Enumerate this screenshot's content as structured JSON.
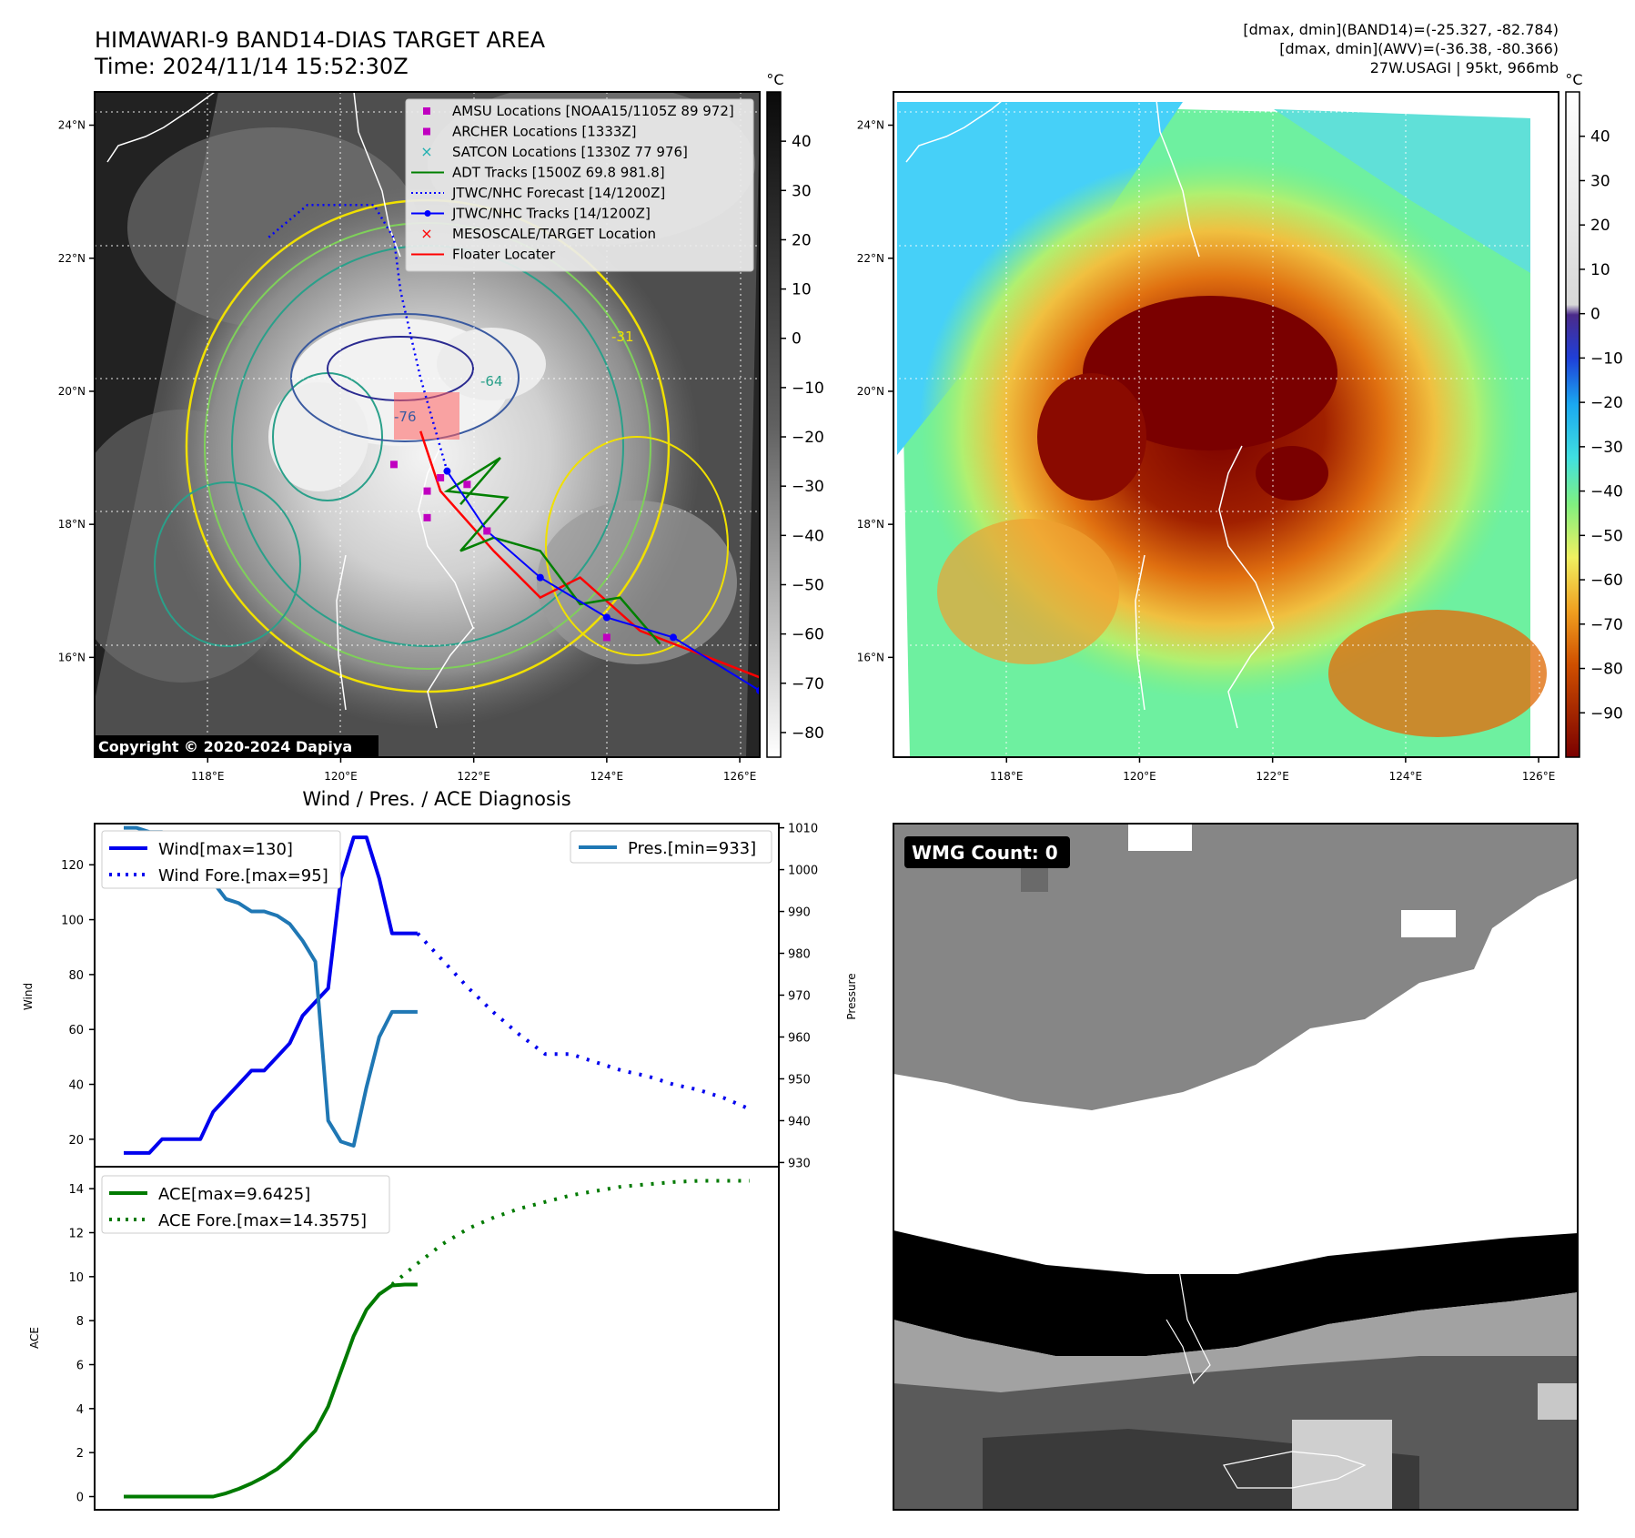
{
  "header": {
    "title_line1": "HIMAWARI-9 BAND14-DIAS TARGET AREA",
    "title_line2": "Time: 2024/11/14 15:52:30Z",
    "info_line1": "[dmax, dmin](BAND14)=(-25.327, -82.784)",
    "info_line2": "[dmax, dmin](AWV)=(-36.38, -80.366)",
    "info_line3": "27W.USAGI | 95kt, 966mb"
  },
  "map_axes": {
    "lon_labels": [
      "118°E",
      "120°E",
      "122°E",
      "124°E",
      "126°E"
    ],
    "lat_labels": [
      "24°N",
      "22°N",
      "20°N",
      "18°N",
      "16°N"
    ],
    "lon_range": [
      116.3,
      126.3
    ],
    "lat_range": [
      14.5,
      24.5
    ]
  },
  "ir_panel": {
    "copyright": "Copyright © 2020-2024 Dapiya",
    "colorbar_unit": "°C",
    "colorbar_ticks": [
      "40",
      "30",
      "20",
      "10",
      "0",
      "−10",
      "−20",
      "−30",
      "−40",
      "−50",
      "−60",
      "−70",
      "−80"
    ],
    "colorbar_range": [
      -85,
      50
    ],
    "legend": [
      {
        "label": "AMSU Locations [NOAA15/1105Z 89 972]",
        "color": "#c000c0"
      },
      {
        "label": "ARCHER Locations [1333Z]",
        "color": "#c000c0"
      },
      {
        "label": "SATCON Locations [1330Z 77 976]",
        "color": "#20b0b0"
      },
      {
        "label": "ADT Tracks [1500Z 69.8 981.8]",
        "color": "#008000"
      },
      {
        "label": "JTWC/NHC Forecast [14/1200Z]",
        "color": "#0000ff"
      },
      {
        "label": "JTWC/NHC Tracks [14/1200Z]",
        "color": "#0000ff"
      },
      {
        "label": "MESOSCALE/TARGET Location",
        "color": "#ff0000"
      },
      {
        "label": "Floater Locater",
        "color": "#ff0000"
      }
    ],
    "contour_labels": [
      "-76",
      "-64",
      "-31"
    ],
    "tracks": {
      "jtwc_track": [
        [
          126.3,
          15.5
        ],
        [
          125.0,
          16.3
        ],
        [
          124.0,
          16.6
        ],
        [
          123.0,
          17.2
        ],
        [
          122.2,
          17.9
        ],
        [
          121.6,
          18.8
        ]
      ],
      "jtwc_forecast": [
        [
          121.6,
          18.8
        ],
        [
          121.2,
          20.2
        ],
        [
          120.9,
          21.5
        ],
        [
          120.8,
          22.3
        ],
        [
          120.5,
          22.8
        ],
        [
          119.5,
          22.8
        ],
        [
          118.9,
          22.3
        ]
      ],
      "adt_track": [
        [
          124.8,
          16.2
        ],
        [
          124.2,
          16.9
        ],
        [
          123.6,
          16.8
        ],
        [
          123.0,
          17.6
        ],
        [
          122.3,
          17.8
        ],
        [
          121.8,
          17.6
        ],
        [
          122.5,
          18.4
        ],
        [
          121.6,
          18.5
        ],
        [
          122.4,
          19.0
        ],
        [
          121.8,
          18.3
        ]
      ],
      "floater": [
        [
          126.3,
          15.7
        ],
        [
          124.5,
          16.4
        ],
        [
          123.6,
          17.2
        ],
        [
          123.0,
          16.9
        ],
        [
          122.3,
          17.6
        ],
        [
          121.5,
          18.5
        ],
        [
          121.2,
          19.4
        ]
      ]
    },
    "amsu_points": [
      [
        120.8,
        18.9
      ],
      [
        121.5,
        18.7
      ],
      [
        121.3,
        18.5
      ],
      [
        121.3,
        18.1
      ],
      [
        121.9,
        18.6
      ],
      [
        122.2,
        17.9
      ],
      [
        124.0,
        16.3
      ]
    ]
  },
  "wv_panel": {
    "colorbar_unit": "°C",
    "colorbar_ticks": [
      "40",
      "30",
      "20",
      "10",
      "0",
      "−10",
      "−20",
      "−30",
      "−40",
      "−50",
      "−60",
      "−70",
      "−80",
      "−90"
    ],
    "colorbar_range": [
      -100,
      50
    ]
  },
  "wind_panel": {
    "title": "Wind / Pres. / ACE Diagnosis",
    "ylabel_left": "Wind",
    "ylabel_right": "Pressure",
    "legend_wind": "Wind[max=130]",
    "legend_wind_fore": "Wind Fore.[max=95]",
    "legend_pres": "Pres.[min=933]",
    "wind_ticks": [
      "20",
      "40",
      "60",
      "80",
      "100",
      "120"
    ],
    "pres_ticks": [
      "930",
      "940",
      "950",
      "960",
      "970",
      "980",
      "990",
      "1000",
      "1010"
    ],
    "wind_ylim": [
      10,
      135
    ],
    "pres_ylim": [
      929,
      1011
    ],
    "colors": {
      "wind": "#0000ee",
      "pres": "#1f77b4"
    }
  },
  "ace_panel": {
    "ylabel": "ACE",
    "legend_ace": "ACE[max=9.6425]",
    "legend_ace_fore": "ACE Fore.[max=14.3575]",
    "ace_ticks": [
      "0",
      "2",
      "4",
      "6",
      "8",
      "10",
      "12",
      "14"
    ],
    "ace_ylim": [
      -0.6,
      15
    ],
    "colors": {
      "ace": "#007a00"
    }
  },
  "wmg_panel": {
    "badge": "WMG Count: 0"
  },
  "chart_data": [
    {
      "type": "line",
      "x_index_range": [
        0,
        49
      ],
      "series": [
        {
          "name": "Wind[max=130]",
          "axis": "wind",
          "x": [
            0,
            2,
            3,
            5,
            6,
            7,
            8,
            9,
            10,
            11,
            12,
            13,
            14,
            15,
            16,
            17,
            18,
            19,
            20,
            21,
            22,
            23
          ],
          "values": [
            15,
            15,
            20,
            20,
            20,
            30,
            35,
            40,
            45,
            45,
            50,
            55,
            65,
            70,
            75,
            115,
            130,
            130,
            115,
            95,
            95,
            95
          ]
        },
        {
          "name": "Wind Fore.[max=95]",
          "axis": "wind",
          "x": [
            23,
            25,
            27,
            29,
            31,
            33,
            35,
            37,
            39,
            41,
            43,
            45,
            47,
            49
          ],
          "values": [
            95,
            85,
            75,
            66,
            58,
            51,
            51,
            48,
            45,
            43,
            40,
            38,
            35,
            31
          ]
        },
        {
          "name": "Pres.[min=933]",
          "axis": "pres",
          "x": [
            0,
            1,
            2,
            3,
            4,
            5,
            6,
            7,
            8,
            9,
            10,
            11,
            12,
            13,
            14,
            15,
            16,
            17,
            18,
            19,
            20,
            21,
            22,
            23
          ],
          "values": [
            1010,
            1010,
            1009,
            1009,
            1007,
            1002,
            1000,
            997,
            993,
            992,
            990,
            990,
            989,
            987,
            983,
            978,
            940,
            935,
            934,
            948,
            960,
            966,
            966,
            966
          ]
        },
        {
          "name": "ACE[max=9.6425]",
          "axis": "ace",
          "x": [
            0,
            2,
            4,
            6,
            7,
            8,
            9,
            10,
            11,
            12,
            13,
            14,
            15,
            16,
            17,
            18,
            19,
            20,
            21,
            22,
            23
          ],
          "values": [
            0,
            0,
            0,
            0,
            0,
            0.15,
            0.35,
            0.6,
            0.9,
            1.25,
            1.75,
            2.4,
            3.0,
            4.1,
            5.7,
            7.3,
            8.5,
            9.2,
            9.6,
            9.64,
            9.64
          ]
        },
        {
          "name": "ACE Fore.[max=14.3575]",
          "axis": "ace",
          "x": [
            21,
            23,
            25,
            27,
            29,
            31,
            33,
            35,
            37,
            39,
            41,
            43,
            45,
            47,
            49
          ],
          "values": [
            9.64,
            10.6,
            11.5,
            12.2,
            12.7,
            13.1,
            13.4,
            13.7,
            13.9,
            14.1,
            14.2,
            14.3,
            14.3575,
            14.3575,
            14.3575
          ]
        }
      ]
    }
  ]
}
